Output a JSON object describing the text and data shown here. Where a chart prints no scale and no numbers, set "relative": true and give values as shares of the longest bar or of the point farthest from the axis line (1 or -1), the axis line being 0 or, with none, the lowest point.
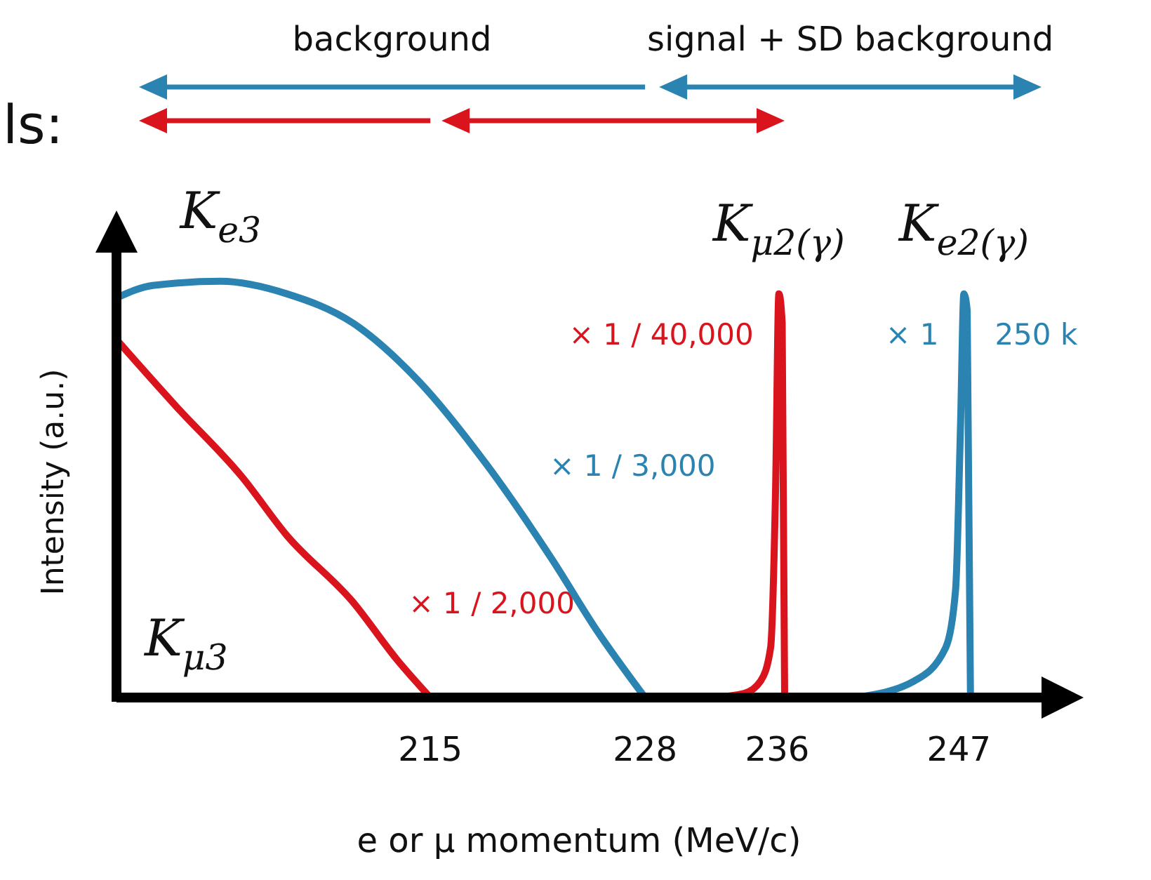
{
  "chart_data": {
    "type": "line",
    "relative": true,
    "xlabel": "e or μ momentum (MeV/c)",
    "ylabel": "Intensity (a.u.)",
    "xlim": [
      196,
      252
    ],
    "xticks": [
      215,
      228,
      236,
      247
    ],
    "grid": false,
    "marker": "none",
    "line_style": "solid",
    "series": [
      {
        "name": "K$_{e3}$",
        "color": "#2a83b0",
        "x": [
          196,
          198.2,
          202.3,
          206.3,
          210.3,
          214.3,
          218.4,
          222.4,
          225.1,
          228
        ],
        "values": [
          0.96,
          0.99,
          1.0,
          0.97,
          0.9,
          0.76,
          0.56,
          0.33,
          0.16,
          0
        ]
      },
      {
        "name": "K$_{μ3}$",
        "color": "#d9141c",
        "x": [
          196,
          199.6,
          203.6,
          206.3,
          210.3,
          213,
          215
        ],
        "values": [
          0.86,
          0.7,
          0.53,
          0.39,
          0.23,
          0.09,
          0
        ]
      },
      {
        "name": "K$_{μ2(γ)}$",
        "color": "#d9141c",
        "x": [
          232.1,
          234,
          235,
          235.6,
          235.9,
          236.1,
          236.3,
          236.45
        ],
        "values": [
          0,
          0.01,
          0.04,
          0.12,
          0.5,
          0.97,
          0.9,
          0
        ]
      },
      {
        "name": "K$_{e2(γ)}$",
        "color": "#2a83b0",
        "x": [
          240.7,
          244.3,
          246.2,
          246.8,
          247.1,
          247.3,
          247.5,
          247.7
        ],
        "values": [
          0,
          0.04,
          0.12,
          0.26,
          0.66,
          0.97,
          0.93,
          0
        ]
      }
    ],
    "annotations": [
      "ls:",
      "background",
      "signal + SD background",
      "× 1 / 40,000",
      "× 1",
      "250 k",
      "× 1 / 3,000",
      "× 1 / 2,000"
    ]
  }
}
